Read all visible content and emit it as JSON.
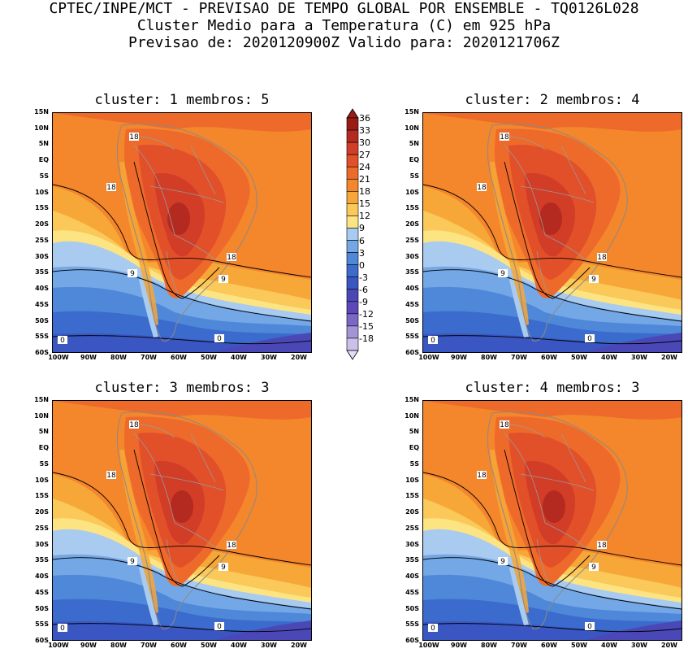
{
  "title": {
    "line1": "CPTEC/INPE/MCT - PREVISAO DE TEMPO GLOBAL POR ENSEMBLE - TQ0126L028",
    "line2": "Cluster Medio para a Temperatura (C) em 925 hPa",
    "line3": "Previsao de: 2020120900Z   Valido para: 2020121706Z"
  },
  "panels": [
    {
      "title": "cluster: 1  membros: 5"
    },
    {
      "title": "cluster: 2  membros: 4"
    },
    {
      "title": "cluster: 3  membros: 3"
    },
    {
      "title": "cluster: 4  membros: 3"
    }
  ],
  "lat_labels": [
    "15N",
    "10N",
    "5N",
    "EQ",
    "5S",
    "10S",
    "15S",
    "20S",
    "25S",
    "30S",
    "35S",
    "40S",
    "45S",
    "50S",
    "55S",
    "60S"
  ],
  "lon_labels": [
    "100W",
    "90W",
    "80W",
    "70W",
    "60W",
    "50W",
    "40W",
    "30W",
    "20W"
  ],
  "contour_labels": [
    "18",
    "18",
    "18",
    "9",
    "9",
    "0",
    "0"
  ],
  "colorbar": {
    "labels": [
      "36",
      "33",
      "30",
      "27",
      "24",
      "21",
      "18",
      "15",
      "12",
      "9",
      "6",
      "3",
      "0",
      "-3",
      "-6",
      "-9",
      "-12",
      "-15",
      "-18"
    ],
    "colors": [
      "#9a1a14",
      "#b52a20",
      "#d13d27",
      "#e2502a",
      "#ee6a2b",
      "#f4862c",
      "#f7a737",
      "#fbc85a",
      "#fde483",
      "#a9cbf0",
      "#74a7e5",
      "#4f88d8",
      "#3b6bcc",
      "#3a56c2",
      "#4a48b6",
      "#5c48b8",
      "#7a67c6",
      "#a394d8",
      "#cbc0ea"
    ]
  }
}
